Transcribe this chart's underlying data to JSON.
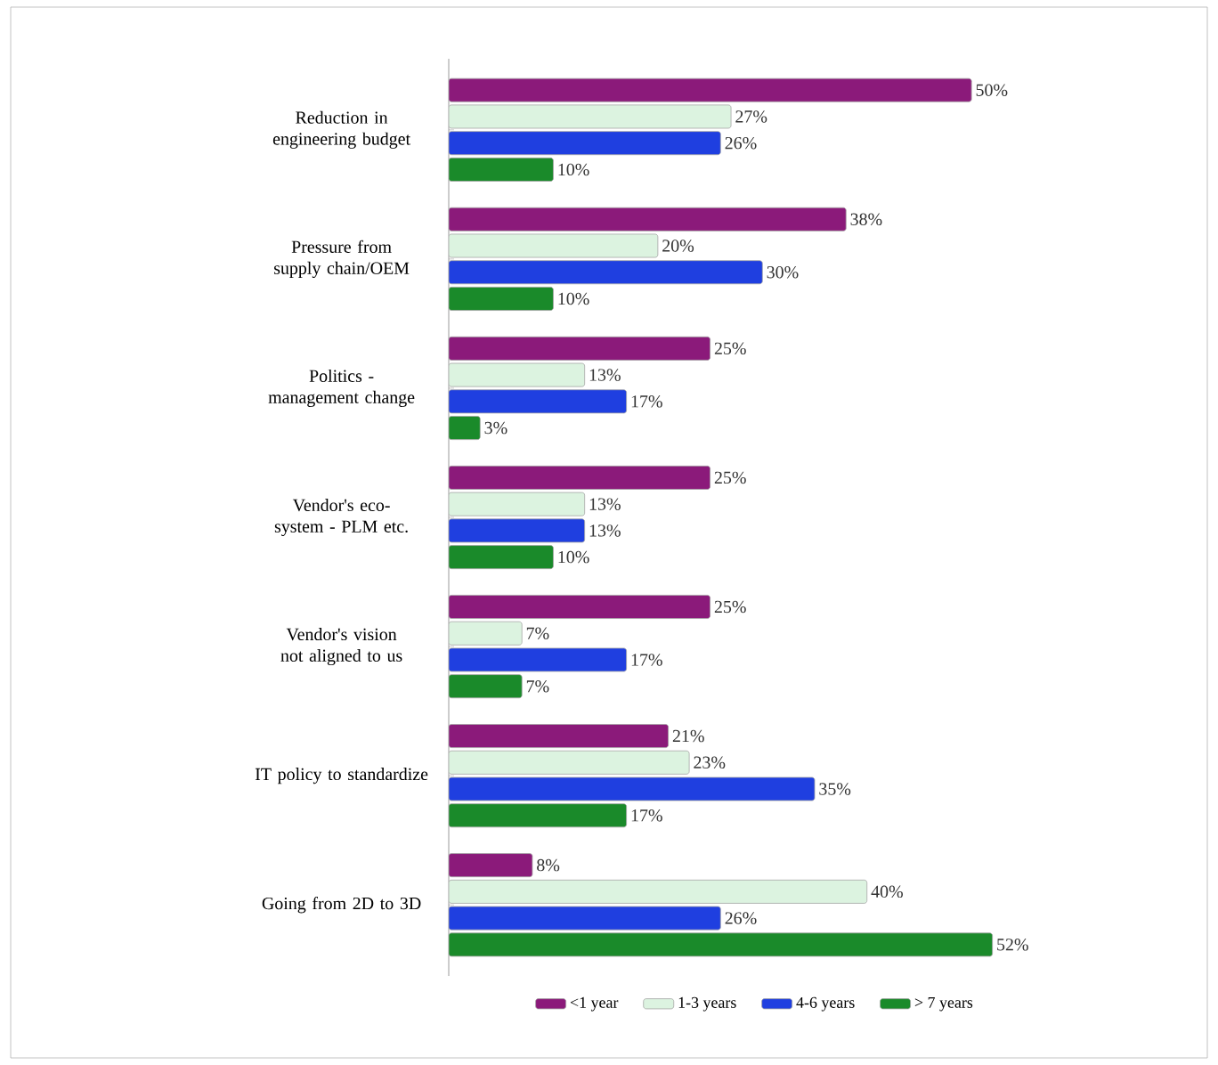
{
  "chart_data": {
    "type": "bar",
    "orientation": "horizontal",
    "legend": "bottom",
    "categories": [
      "Reduction in engineering budget",
      "Pressure from supply chain/OEM",
      "Politics - management change",
      "Vendor's eco-system - PLM etc.",
      "Vendor's vision not aligned to us",
      "IT policy to standardize",
      "Going from 2D to 3D"
    ],
    "series": [
      {
        "name": "<1 year",
        "color": "#8b1a7a",
        "values": [
          50,
          38,
          25,
          25,
          25,
          21,
          8
        ],
        "value_labels": [
          "50%",
          "38%",
          "25%",
          "25%",
          "25%",
          "21%",
          "8%"
        ]
      },
      {
        "name": "1-3 years",
        "color": "#dcf3e0",
        "values": [
          27,
          20,
          13,
          13,
          7,
          23,
          40
        ],
        "value_labels": [
          "27%",
          "20%",
          "13%",
          "13%",
          "7%",
          "23%",
          "40%"
        ]
      },
      {
        "name": "4-6 years",
        "color": "#1f3fe0",
        "values": [
          26,
          30,
          17,
          13,
          17,
          35,
          26
        ],
        "value_labels": [
          "26%",
          "30%",
          "17%",
          "13%",
          "17%",
          "35%",
          "26%"
        ]
      },
      {
        "name": "> 7 years",
        "color": "#1a8a2a",
        "values": [
          10,
          10,
          3,
          10,
          7,
          17,
          52
        ],
        "value_labels": [
          "10%",
          "10%",
          "3%",
          "10%",
          "7%",
          "17%",
          "52%"
        ]
      }
    ]
  }
}
